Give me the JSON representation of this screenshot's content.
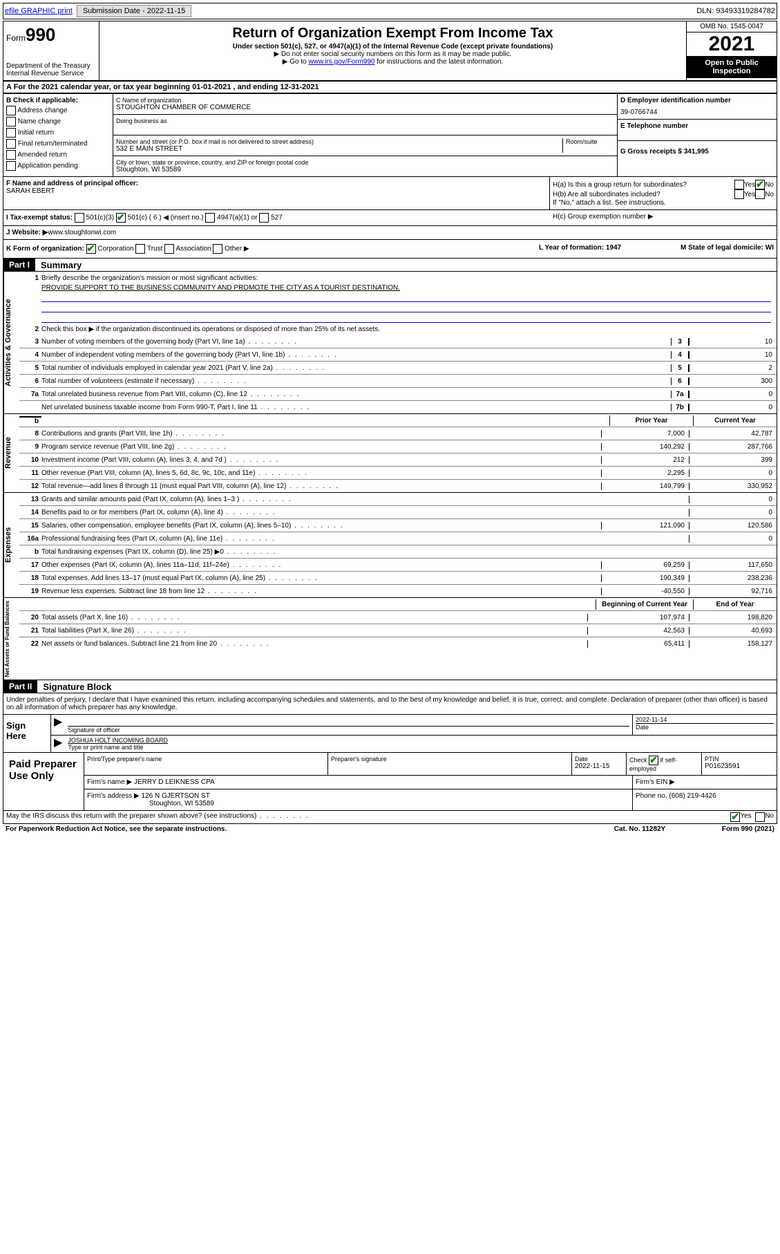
{
  "top": {
    "efile": "efile GRAPHIC print",
    "submission_label": "Submission Date - 2022-11-15",
    "dln_label": "DLN: 93493319284782"
  },
  "header": {
    "form_word": "Form",
    "form_num": "990",
    "dept": "Department of the Treasury",
    "irs": "Internal Revenue Service",
    "title": "Return of Organization Exempt From Income Tax",
    "sub": "Under section 501(c), 527, or 4947(a)(1) of the Internal Revenue Code (except private foundations)",
    "note1": "▶ Do not enter social security numbers on this form as it may be made public.",
    "note2_a": "▶ Go to ",
    "note2_link": "www.irs.gov/Form990",
    "note2_b": " for instructions and the latest information.",
    "omb": "OMB No. 1545-0047",
    "year": "2021",
    "open": "Open to Public Inspection"
  },
  "rowA": "A For the 2021 calendar year, or tax year beginning 01-01-2021   , and ending 12-31-2021",
  "colB": {
    "head": "B Check if applicable:",
    "items": [
      "Address change",
      "Name change",
      "Initial return",
      "Final return/terminated",
      "Amended return",
      "Application pending"
    ]
  },
  "cname": {
    "c_lbl": "C Name of organization",
    "c_val": "STOUGHTON CHAMBER OF COMMERCE",
    "dba_lbl": "Doing business as",
    "addr_lbl": "Number and street (or P.O. box if mail is not delivered to street address)",
    "room_lbl": "Room/suite",
    "addr_val": "532 E MAIN STREET",
    "city_lbl": "City or town, state or province, country, and ZIP or foreign postal code",
    "city_val": "Stoughton, WI  53589"
  },
  "colD": {
    "d_lbl": "D Employer identification number",
    "d_val": "39-0766744",
    "e_lbl": "E Telephone number",
    "g_lbl": "G Gross receipts $ 341,995"
  },
  "fh": {
    "f_lbl": "F  Name and address of principal officer:",
    "f_val": "SARAH EBERT",
    "ha": "H(a)  Is this a group return for subordinates?",
    "hb": "H(b)  Are all subordinates included?",
    "hb_note": "If \"No,\" attach a list. See instructions.",
    "hc": "H(c)  Group exemption number ▶",
    "yes": "Yes",
    "no": "No"
  },
  "i": {
    "lbl": "I   Tax-exempt status:",
    "o1": "501(c)(3)",
    "o2": "501(c) ( 6 ) ◀ (insert no.)",
    "o3": "4947(a)(1) or",
    "o4": "527"
  },
  "j": {
    "lbl": "J   Website: ▶ ",
    "val": "www.stoughtonwi.com"
  },
  "k": {
    "lbl": "K Form of organization:",
    "o1": "Corporation",
    "o2": "Trust",
    "o3": "Association",
    "o4": "Other ▶"
  },
  "l": {
    "lbl": "L Year of formation: 1947"
  },
  "m": {
    "lbl": "M State of legal domicile: WI"
  },
  "part1": {
    "num": "Part I",
    "title": "Summary"
  },
  "gov": {
    "side": "Activities & Governance",
    "l1": "Briefly describe the organization's mission or most significant activities:",
    "l1v": "PROVIDE SUPPORT TO THE BUSINESS COMMUNITY AND PROMOTE THE CITY AS A TOURIST DESTINATION.",
    "l2": "Check this box ▶         if the organization discontinued its operations or disposed of more than 25% of its net assets.",
    "lines": [
      {
        "n": "3",
        "d": "Number of voting members of the governing body (Part VI, line 1a)",
        "box": "3",
        "v": "10"
      },
      {
        "n": "4",
        "d": "Number of independent voting members of the governing body (Part VI, line 1b)",
        "box": "4",
        "v": "10"
      },
      {
        "n": "5",
        "d": "Total number of individuals employed in calendar year 2021 (Part V, line 2a)",
        "box": "5",
        "v": "2"
      },
      {
        "n": "6",
        "d": "Total number of volunteers (estimate if necessary)",
        "box": "6",
        "v": "300"
      },
      {
        "n": "7a",
        "d": "Total unrelated business revenue from Part VIII, column (C), line 12",
        "box": "7a",
        "v": "0"
      },
      {
        "n": "",
        "d": "Net unrelated business taxable income from Form 990-T, Part I, line 11",
        "box": "7b",
        "v": "0"
      }
    ]
  },
  "rev": {
    "side": "Revenue",
    "h1": "Prior Year",
    "h2": "Current Year",
    "lines": [
      {
        "n": "8",
        "d": "Contributions and grants (Part VIII, line 1h)",
        "p": "7,000",
        "c": "42,787"
      },
      {
        "n": "9",
        "d": "Program service revenue (Part VIII, line 2g)",
        "p": "140,292",
        "c": "287,766"
      },
      {
        "n": "10",
        "d": "Investment income (Part VIII, column (A), lines 3, 4, and 7d )",
        "p": "212",
        "c": "399"
      },
      {
        "n": "11",
        "d": "Other revenue (Part VIII, column (A), lines 5, 6d, 8c, 9c, 10c, and 11e)",
        "p": "2,295",
        "c": "0"
      },
      {
        "n": "12",
        "d": "Total revenue—add lines 8 through 11 (must equal Part VIII, column (A), line 12)",
        "p": "149,799",
        "c": "330,952"
      }
    ]
  },
  "exp": {
    "side": "Expenses",
    "lines": [
      {
        "n": "13",
        "d": "Grants and similar amounts paid (Part IX, column (A), lines 1–3 )",
        "p": "",
        "c": "0"
      },
      {
        "n": "14",
        "d": "Benefits paid to or for members (Part IX, column (A), line 4)",
        "p": "",
        "c": "0"
      },
      {
        "n": "15",
        "d": "Salaries, other compensation, employee benefits (Part IX, column (A), lines 5–10)",
        "p": "121,090",
        "c": "120,586"
      },
      {
        "n": "16a",
        "d": "Professional fundraising fees (Part IX, column (A), line 11e)",
        "p": "",
        "c": "0"
      },
      {
        "n": "b",
        "d": "Total fundraising expenses (Part IX, column (D), line 25) ▶0",
        "p": "shade",
        "c": "shade"
      },
      {
        "n": "17",
        "d": "Other expenses (Part IX, column (A), lines 11a–11d, 11f–24e)",
        "p": "69,259",
        "c": "117,650"
      },
      {
        "n": "18",
        "d": "Total expenses. Add lines 13–17 (must equal Part IX, column (A), line 25)",
        "p": "190,349",
        "c": "238,236"
      },
      {
        "n": "19",
        "d": "Revenue less expenses. Subtract line 18 from line 12",
        "p": "-40,550",
        "c": "92,716"
      }
    ]
  },
  "net": {
    "side": "Net Assets or Fund Balances",
    "h1": "Beginning of Current Year",
    "h2": "End of Year",
    "lines": [
      {
        "n": "20",
        "d": "Total assets (Part X, line 16)",
        "p": "107,974",
        "c": "198,820"
      },
      {
        "n": "21",
        "d": "Total liabilities (Part X, line 26)",
        "p": "42,563",
        "c": "40,693"
      },
      {
        "n": "22",
        "d": "Net assets or fund balances. Subtract line 21 from line 20",
        "p": "65,411",
        "c": "158,127"
      }
    ]
  },
  "part2": {
    "num": "Part II",
    "title": "Signature Block"
  },
  "penalty": "Under penalties of perjury, I declare that I have examined this return, including accompanying schedules and statements, and to the best of my knowledge and belief, it is true, correct, and complete. Declaration of preparer (other than officer) is based on all information of which preparer has any knowledge.",
  "sign": {
    "left": "Sign Here",
    "date": "2022-11-14",
    "sig_lbl": "Signature of officer",
    "date_lbl": "Date",
    "name": "JOSHUA HOLT INCOMING BOARD",
    "name_lbl": "Type or print name and title"
  },
  "paid": {
    "left": "Paid Preparer Use Only",
    "h1": "Print/Type preparer's name",
    "h2": "Preparer's signature",
    "h3": "Date",
    "h3v": "2022-11-15",
    "h4": "Check         if self-employed",
    "h5": "PTIN",
    "h5v": "P01623591",
    "firm_lbl": "Firm's name    ▶",
    "firm_val": "JERRY D LEIKNESS CPA",
    "ein_lbl": "Firm's EIN ▶",
    "addr_lbl": "Firm's address ▶",
    "addr_val": "126 N GJERTSON ST",
    "addr_val2": "Stoughton, WI  53589",
    "phone_lbl": "Phone no. (608) 219-4426"
  },
  "footer": {
    "discuss": "May the IRS discuss this return with the preparer shown above? (see instructions)",
    "yes": "Yes",
    "no": "No",
    "paperwork": "For Paperwork Reduction Act Notice, see the separate instructions.",
    "cat": "Cat. No. 11282Y",
    "form": "Form 990 (2021)"
  }
}
